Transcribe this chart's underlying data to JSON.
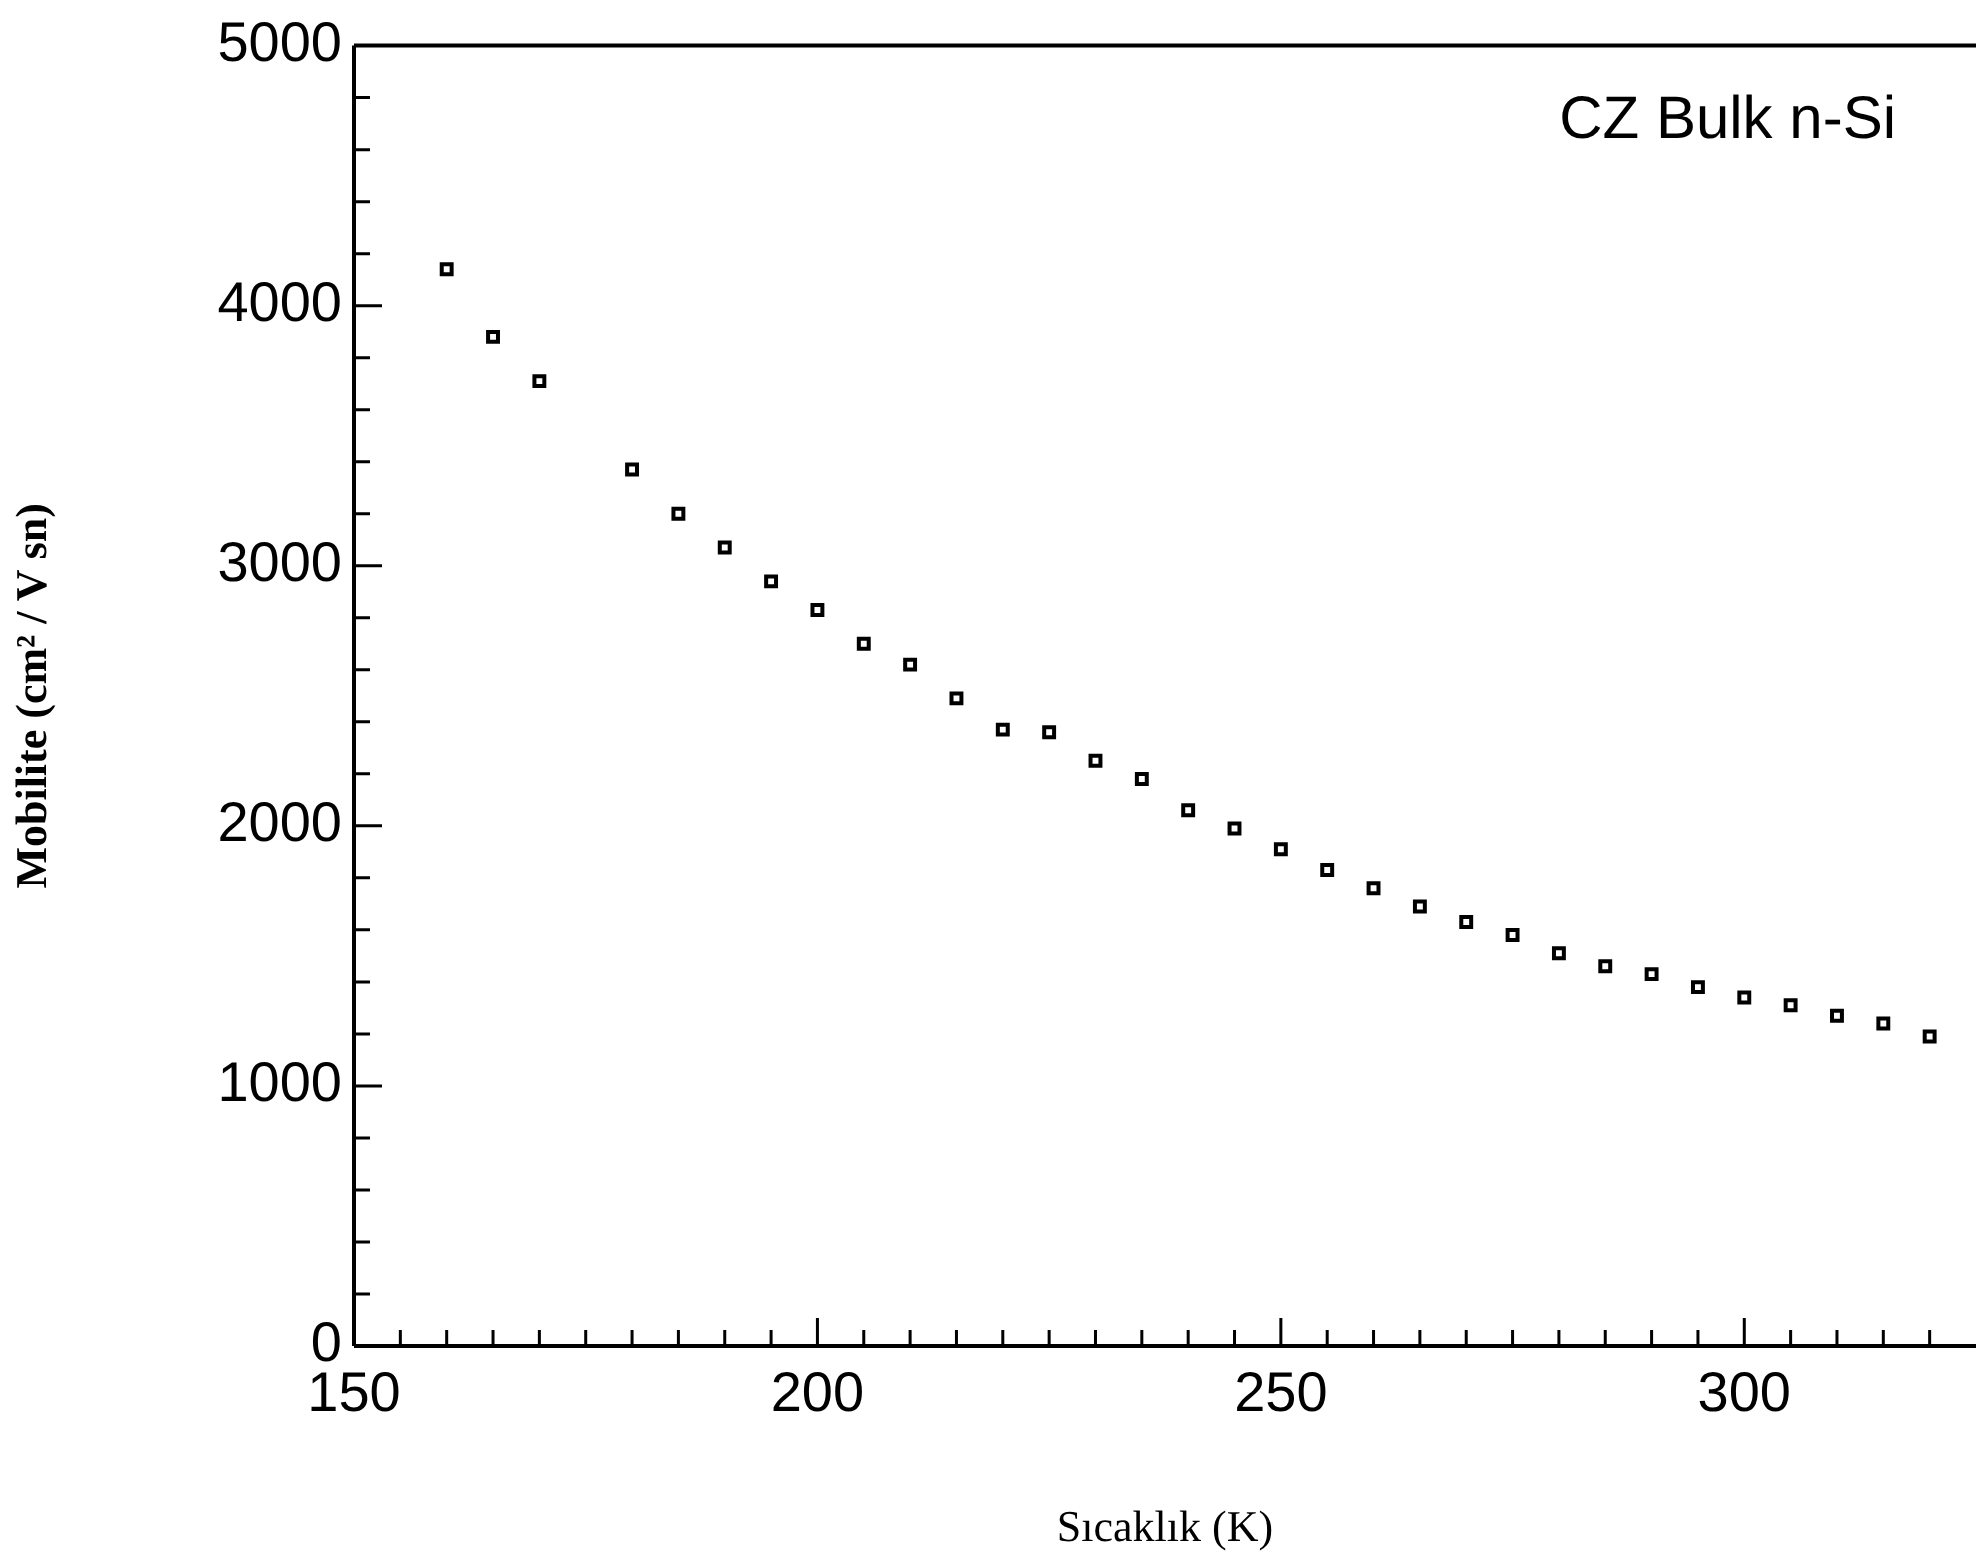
{
  "chart_data": {
    "type": "scatter",
    "xlabel": "Sıcaklık (K)",
    "ylabel": "Mobilite (cm² / V sn)",
    "annotations": [
      "CZ Bulk n-Si"
    ],
    "x": [
      160,
      165,
      170,
      180,
      185,
      190,
      195,
      200,
      205,
      210,
      215,
      220,
      225,
      230,
      235,
      240,
      245,
      250,
      255,
      260,
      265,
      270,
      275,
      280,
      285,
      290,
      295,
      300,
      305,
      310,
      315,
      320
    ],
    "series": [
      {
        "color": "#000000",
        "values": [
          4140,
          3880,
          3710,
          3370,
          3200,
          3070,
          2940,
          2830,
          2700,
          2620,
          2490,
          2370,
          2360,
          2250,
          2180,
          2060,
          1990,
          1910,
          1830,
          1760,
          1690,
          1630,
          1580,
          1510,
          1460,
          1430,
          1380,
          1340,
          1310,
          1270,
          1240,
          1190
        ]
      }
    ],
    "xlim": [
      150,
      325
    ],
    "xticks": [
      150,
      {
        "value": 155,
        "label": null
      },
      {
        "value": 160,
        "label": null
      },
      {
        "value": 165,
        "label": null
      },
      {
        "value": 170,
        "label": null
      },
      {
        "value": 175,
        "label": null
      },
      {
        "value": 180,
        "label": null
      },
      {
        "value": 185,
        "label": null
      },
      {
        "value": 190,
        "label": null
      },
      {
        "value": 195,
        "label": null
      },
      200,
      {
        "value": 205,
        "label": null
      },
      {
        "value": 210,
        "label": null
      },
      {
        "value": 215,
        "label": null
      },
      {
        "value": 220,
        "label": null
      },
      {
        "value": 225,
        "label": null
      },
      {
        "value": 230,
        "label": null
      },
      {
        "value": 235,
        "label": null
      },
      {
        "value": 240,
        "label": null
      },
      {
        "value": 245,
        "label": null
      },
      250,
      {
        "value": 255,
        "label": null
      },
      {
        "value": 260,
        "label": null
      },
      {
        "value": 265,
        "label": null
      },
      {
        "value": 270,
        "label": null
      },
      {
        "value": 275,
        "label": null
      },
      {
        "value": 280,
        "label": null
      },
      {
        "value": 285,
        "label": null
      },
      {
        "value": 290,
        "label": null
      },
      {
        "value": 295,
        "label": null
      },
      300,
      {
        "value": 305,
        "label": null
      },
      {
        "value": 310,
        "label": null
      },
      {
        "value": 315,
        "label": null
      },
      {
        "value": 320,
        "label": null
      }
    ],
    "ylim": [
      0,
      5000
    ],
    "yticks": [
      0,
      {
        "value": 200,
        "label": null
      },
      {
        "value": 400,
        "label": null
      },
      {
        "value": 600,
        "label": null
      },
      {
        "value": 800,
        "label": null
      },
      1000,
      {
        "value": 1200,
        "label": null
      },
      {
        "value": 1400,
        "label": null
      },
      {
        "value": 1600,
        "label": null
      },
      {
        "value": 1800,
        "label": null
      },
      2000,
      {
        "value": 2200,
        "label": null
      },
      {
        "value": 2400,
        "label": null
      },
      {
        "value": 2600,
        "label": null
      },
      {
        "value": 2800,
        "label": null
      },
      3000,
      {
        "value": 3200,
        "label": null
      },
      {
        "value": 3400,
        "label": null
      },
      {
        "value": 3600,
        "label": null
      },
      {
        "value": 3800,
        "label": null
      },
      4000,
      {
        "value": 4200,
        "label": null
      },
      {
        "value": 4400,
        "label": null
      },
      {
        "value": 4600,
        "label": null
      },
      {
        "value": 4800,
        "label": null
      },
      5000
    ],
    "grid": false,
    "legend": false,
    "marker": "square"
  }
}
